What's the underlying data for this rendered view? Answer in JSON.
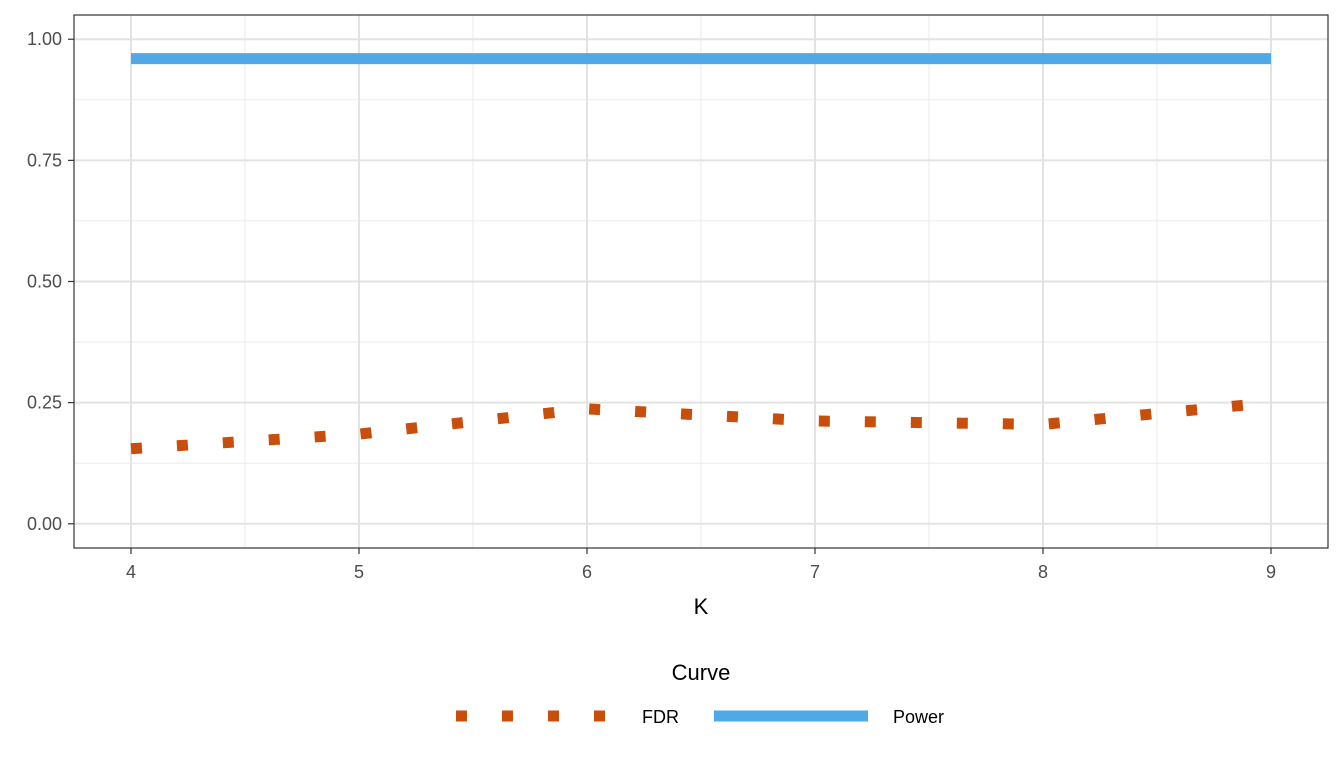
{
  "chart_data": {
    "type": "line",
    "title": "",
    "xlabel": "K",
    "ylabel": "",
    "xlim": [
      3.75,
      9.25
    ],
    "ylim": [
      -0.05,
      1.05
    ],
    "x_ticks": [
      4,
      5,
      6,
      7,
      8,
      9
    ],
    "x_tick_labels": [
      "4",
      "5",
      "6",
      "7",
      "8",
      "9"
    ],
    "y_ticks": [
      0,
      0.25,
      0.5,
      0.75,
      1.0
    ],
    "y_tick_labels": [
      "0.00",
      "0.25",
      "0.50",
      "0.75",
      "1.00"
    ],
    "grid": true,
    "legend": {
      "title": "Curve",
      "position": "bottom"
    },
    "series": [
      {
        "name": "FDR",
        "style": "dotted",
        "color": "#C94E0B",
        "x": [
          4,
          5,
          6,
          7,
          8,
          9
        ],
        "y": [
          0.155,
          0.185,
          0.237,
          0.212,
          0.205,
          0.25
        ]
      },
      {
        "name": "Power",
        "style": "solid",
        "color": "#4EA9E6",
        "x": [
          4,
          5,
          6,
          7,
          8,
          9
        ],
        "y": [
          0.96,
          0.96,
          0.96,
          0.96,
          0.96,
          0.96
        ]
      }
    ]
  }
}
